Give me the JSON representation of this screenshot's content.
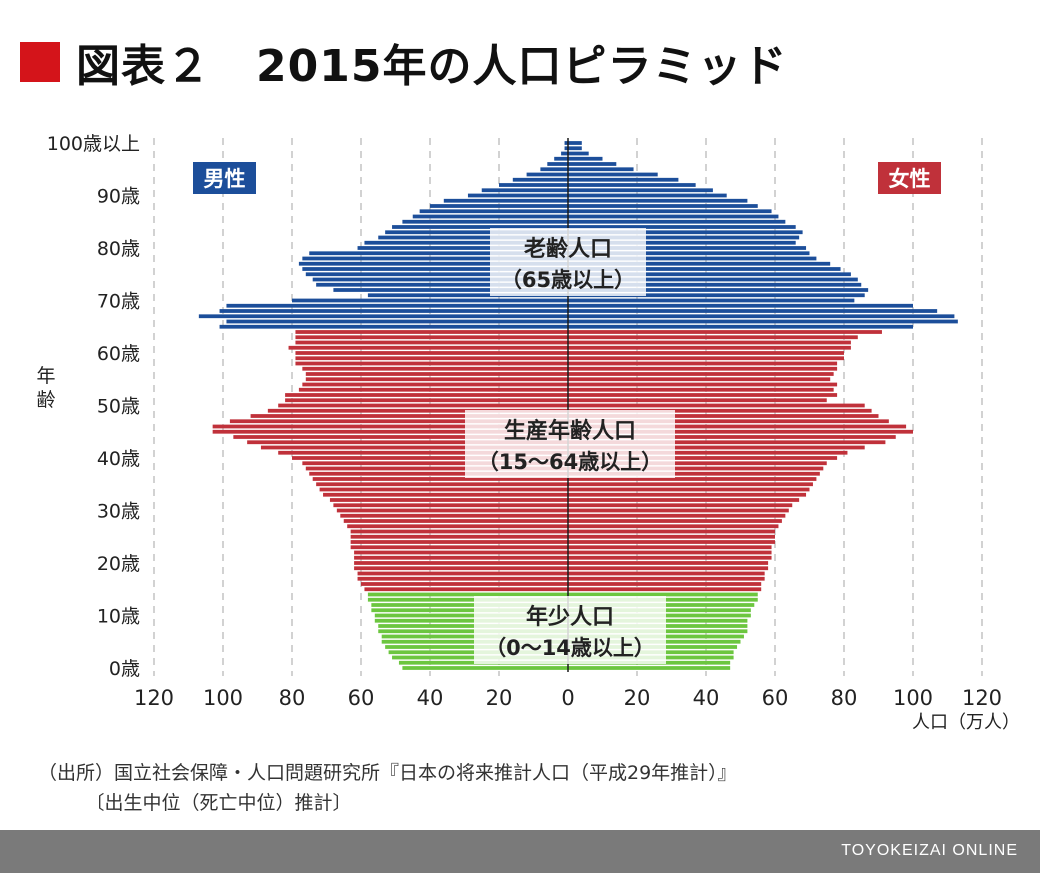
{
  "title": "図表２　2015年の人口ピラミッド",
  "source_line1": "（出所）国立社会保障・人口問題研究所『日本の将来推計人口（平成29年推計）』",
  "source_line2": "　　　〔出生中位（死亡中位）推計〕",
  "brand": "TOYOKEIZAI ONLINE",
  "colors": {
    "title_square": "#d4141a",
    "elderly": "#1c4e9a",
    "working": "#c0313a",
    "young": "#6cc63f",
    "male_badge": "#1c4e9a",
    "female_badge": "#c0313a",
    "footer": "#7a7a7a"
  },
  "chart_data": {
    "type": "bar",
    "orientation": "horizontal-pyramid",
    "ylabel": "年齢",
    "xlabel": "人口（万人）",
    "xlim": [
      -120,
      120
    ],
    "x_ticks": [
      "120",
      "100",
      "80",
      "60",
      "40",
      "20",
      "0",
      "20",
      "40",
      "60",
      "80",
      "100",
      "120"
    ],
    "y_ticks": [
      "100歳以上",
      "90歳",
      "80歳",
      "70歳",
      "60歳",
      "50歳",
      "40歳",
      "30歳",
      "20歳",
      "10歳",
      "0歳"
    ],
    "grid": true,
    "legend": [
      "男性",
      "女性"
    ],
    "ages": [
      0,
      1,
      2,
      3,
      4,
      5,
      6,
      7,
      8,
      9,
      10,
      11,
      12,
      13,
      14,
      15,
      16,
      17,
      18,
      19,
      20,
      21,
      22,
      23,
      24,
      25,
      26,
      27,
      28,
      29,
      30,
      31,
      32,
      33,
      34,
      35,
      36,
      37,
      38,
      39,
      40,
      41,
      42,
      43,
      44,
      45,
      46,
      47,
      48,
      49,
      50,
      51,
      52,
      53,
      54,
      55,
      56,
      57,
      58,
      59,
      60,
      61,
      62,
      63,
      64,
      65,
      66,
      67,
      68,
      69,
      70,
      71,
      72,
      73,
      74,
      75,
      76,
      77,
      78,
      79,
      80,
      81,
      82,
      83,
      84,
      85,
      86,
      87,
      88,
      89,
      90,
      91,
      92,
      93,
      94,
      95,
      96,
      97,
      98,
      99,
      "100+"
    ],
    "series": [
      {
        "name": "男性",
        "values": [
          48,
          49,
          51,
          52,
          53,
          54,
          54,
          55,
          55,
          56,
          56,
          57,
          57,
          58,
          58,
          59,
          60,
          61,
          61,
          62,
          62,
          62,
          62,
          63,
          63,
          63,
          63,
          64,
          65,
          66,
          67,
          68,
          69,
          71,
          72,
          73,
          74,
          75,
          76,
          77,
          80,
          84,
          89,
          93,
          97,
          103,
          103,
          98,
          92,
          87,
          84,
          82,
          82,
          78,
          77,
          76,
          76,
          77,
          79,
          79,
          79,
          81,
          79,
          79,
          79,
          101,
          99,
          107,
          101,
          99,
          80,
          58,
          68,
          73,
          74,
          76,
          77,
          78,
          77,
          75,
          61,
          59,
          55,
          53,
          51,
          48,
          45,
          43,
          40,
          36,
          29,
          25,
          20,
          16,
          12,
          8,
          6,
          4,
          2,
          1,
          1
        ]
      },
      {
        "name": "女性",
        "values": [
          47,
          47,
          48,
          48,
          49,
          50,
          51,
          52,
          52,
          52,
          53,
          53,
          54,
          55,
          55,
          56,
          56,
          57,
          57,
          58,
          58,
          59,
          59,
          59,
          60,
          60,
          60,
          61,
          62,
          63,
          64,
          65,
          67,
          69,
          70,
          71,
          72,
          73,
          74,
          75,
          78,
          81,
          86,
          92,
          95,
          100,
          98,
          93,
          90,
          88,
          86,
          75,
          78,
          77,
          78,
          76,
          77,
          78,
          78,
          80,
          80,
          82,
          82,
          84,
          91,
          100,
          113,
          112,
          107,
          100,
          83,
          86,
          87,
          85,
          84,
          82,
          79,
          76,
          72,
          70,
          69,
          66,
          67,
          68,
          66,
          63,
          61,
          59,
          55,
          52,
          46,
          42,
          37,
          32,
          26,
          19,
          14,
          10,
          6,
          4,
          4
        ]
      }
    ],
    "groups": [
      {
        "label": "年少人口",
        "sublabel": "（0〜14歳以上）",
        "ages": [
          0,
          14
        ]
      },
      {
        "label": "生産年齢人口",
        "sublabel": "（15〜64歳以上）",
        "ages": [
          15,
          64
        ]
      },
      {
        "label": "老齢人口",
        "sublabel": "（65歳以上）",
        "ages": [
          65,
          100
        ]
      }
    ]
  }
}
